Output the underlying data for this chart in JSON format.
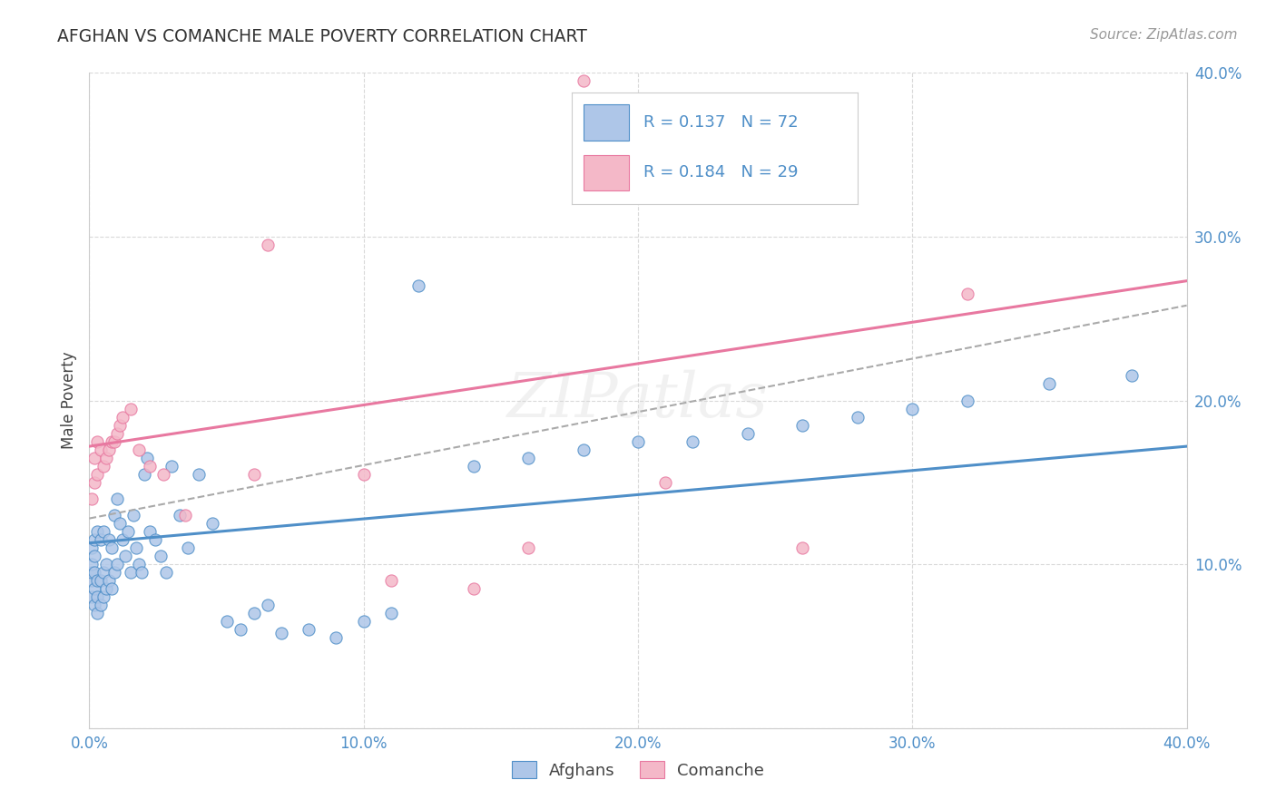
{
  "title": "AFGHAN VS COMANCHE MALE POVERTY CORRELATION CHART",
  "source": "Source: ZipAtlas.com",
  "ylabel": "Male Poverty",
  "xlim": [
    0.0,
    0.4
  ],
  "ylim": [
    0.0,
    0.4
  ],
  "background_color": "#ffffff",
  "grid_color": "#d0d0d0",
  "afghan_color": "#aec6e8",
  "comanche_color": "#f4b8c8",
  "afghan_line_color": "#4f8fc8",
  "comanche_line_color": "#e878a0",
  "trend_dash_color": "#aaaaaa",
  "watermark": "ZIPatlas",
  "title_color": "#333333",
  "axis_tick_color": "#4f8fc8",
  "legend_text_color": "#4f8fc8",
  "blue_line_start": 0.113,
  "blue_line_end": 0.172,
  "pink_line_start": 0.172,
  "pink_line_end": 0.273,
  "dash_line_start": 0.128,
  "dash_line_end": 0.258,
  "afghan_points_x": [
    0.001,
    0.001,
    0.001,
    0.001,
    0.001,
    0.002,
    0.002,
    0.002,
    0.002,
    0.002,
    0.003,
    0.003,
    0.003,
    0.003,
    0.004,
    0.004,
    0.004,
    0.005,
    0.005,
    0.005,
    0.006,
    0.006,
    0.007,
    0.007,
    0.008,
    0.008,
    0.009,
    0.009,
    0.01,
    0.01,
    0.011,
    0.012,
    0.013,
    0.014,
    0.015,
    0.016,
    0.017,
    0.018,
    0.019,
    0.02,
    0.021,
    0.022,
    0.024,
    0.026,
    0.028,
    0.03,
    0.033,
    0.036,
    0.04,
    0.045,
    0.05,
    0.055,
    0.06,
    0.065,
    0.07,
    0.08,
    0.09,
    0.1,
    0.11,
    0.12,
    0.14,
    0.16,
    0.18,
    0.2,
    0.22,
    0.24,
    0.26,
    0.28,
    0.3,
    0.32,
    0.35,
    0.38
  ],
  "afghan_points_y": [
    0.08,
    0.09,
    0.095,
    0.1,
    0.11,
    0.075,
    0.085,
    0.095,
    0.105,
    0.115,
    0.07,
    0.08,
    0.09,
    0.12,
    0.075,
    0.09,
    0.115,
    0.08,
    0.095,
    0.12,
    0.085,
    0.1,
    0.09,
    0.115,
    0.085,
    0.11,
    0.095,
    0.13,
    0.1,
    0.14,
    0.125,
    0.115,
    0.105,
    0.12,
    0.095,
    0.13,
    0.11,
    0.1,
    0.095,
    0.155,
    0.165,
    0.12,
    0.115,
    0.105,
    0.095,
    0.16,
    0.13,
    0.11,
    0.155,
    0.125,
    0.065,
    0.06,
    0.07,
    0.075,
    0.058,
    0.06,
    0.055,
    0.065,
    0.07,
    0.27,
    0.16,
    0.165,
    0.17,
    0.175,
    0.175,
    0.18,
    0.185,
    0.19,
    0.195,
    0.2,
    0.21,
    0.215
  ],
  "comanche_points_x": [
    0.001,
    0.002,
    0.002,
    0.003,
    0.003,
    0.004,
    0.005,
    0.006,
    0.007,
    0.008,
    0.009,
    0.01,
    0.011,
    0.012,
    0.015,
    0.018,
    0.022,
    0.027,
    0.035,
    0.06,
    0.065,
    0.1,
    0.11,
    0.14,
    0.16,
    0.18,
    0.21,
    0.26,
    0.32
  ],
  "comanche_points_y": [
    0.14,
    0.15,
    0.165,
    0.155,
    0.175,
    0.17,
    0.16,
    0.165,
    0.17,
    0.175,
    0.175,
    0.18,
    0.185,
    0.19,
    0.195,
    0.17,
    0.16,
    0.155,
    0.13,
    0.155,
    0.295,
    0.155,
    0.09,
    0.085,
    0.11,
    0.395,
    0.15,
    0.11,
    0.265
  ]
}
